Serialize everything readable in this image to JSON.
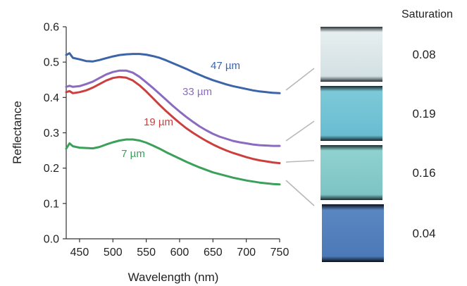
{
  "chart_data": {
    "type": "line",
    "title": "",
    "xlabel": "Wavelength (nm)",
    "ylabel": "Reflectance",
    "xlim": [
      430,
      750
    ],
    "ylim": [
      0.0,
      0.6
    ],
    "xticks": [
      "450",
      "500",
      "550",
      "600",
      "650",
      "700",
      "750"
    ],
    "yticks": [
      "0.0",
      "0.1",
      "0.2",
      "0.3",
      "0.4",
      "0.5",
      "0.6"
    ],
    "grid": false,
    "x": [
      430,
      435,
      440,
      450,
      460,
      470,
      480,
      490,
      500,
      510,
      520,
      530,
      540,
      550,
      560,
      570,
      580,
      590,
      600,
      610,
      620,
      630,
      640,
      650,
      660,
      670,
      680,
      690,
      700,
      710,
      720,
      730,
      740,
      750
    ],
    "series": [
      {
        "name": "47 µm",
        "color": "#3c64a8",
        "values": [
          0.52,
          0.525,
          0.512,
          0.508,
          0.503,
          0.502,
          0.506,
          0.511,
          0.516,
          0.52,
          0.522,
          0.523,
          0.523,
          0.521,
          0.517,
          0.512,
          0.505,
          0.497,
          0.489,
          0.481,
          0.472,
          0.464,
          0.456,
          0.449,
          0.443,
          0.437,
          0.432,
          0.428,
          0.424,
          0.42,
          0.417,
          0.415,
          0.413,
          0.412
        ]
      },
      {
        "name": "33 µm",
        "color": "#8a6bbf",
        "values": [
          0.43,
          0.433,
          0.43,
          0.432,
          0.438,
          0.445,
          0.455,
          0.465,
          0.472,
          0.476,
          0.476,
          0.47,
          0.458,
          0.443,
          0.427,
          0.41,
          0.393,
          0.376,
          0.36,
          0.345,
          0.331,
          0.318,
          0.307,
          0.297,
          0.289,
          0.283,
          0.277,
          0.273,
          0.27,
          0.267,
          0.265,
          0.264,
          0.263,
          0.263
        ]
      },
      {
        "name": "19 µm",
        "color": "#cc3f3f",
        "values": [
          0.415,
          0.418,
          0.412,
          0.415,
          0.42,
          0.428,
          0.438,
          0.448,
          0.455,
          0.458,
          0.456,
          0.448,
          0.434,
          0.417,
          0.398,
          0.379,
          0.361,
          0.344,
          0.328,
          0.313,
          0.3,
          0.288,
          0.277,
          0.267,
          0.258,
          0.25,
          0.243,
          0.237,
          0.231,
          0.226,
          0.222,
          0.219,
          0.216,
          0.214
        ]
      },
      {
        "name": "7 µm",
        "color": "#3aa05a",
        "values": [
          0.255,
          0.27,
          0.262,
          0.258,
          0.257,
          0.256,
          0.26,
          0.267,
          0.273,
          0.278,
          0.281,
          0.281,
          0.278,
          0.272,
          0.264,
          0.255,
          0.245,
          0.236,
          0.227,
          0.218,
          0.21,
          0.202,
          0.195,
          0.188,
          0.183,
          0.178,
          0.173,
          0.169,
          0.165,
          0.162,
          0.159,
          0.157,
          0.155,
          0.154
        ]
      }
    ]
  },
  "saturation_panel": {
    "header": "Saturation",
    "swatches": [
      {
        "value": "0.08",
        "color_top": "#e6eeef",
        "color_mid": "#d3e0e3",
        "color_edge": "#2a3236"
      },
      {
        "value": "0.19",
        "color_top": "#7cc9d8",
        "color_mid": "#69bdd1",
        "color_edge": "#16262c"
      },
      {
        "value": "0.16",
        "color_top": "#8fd1cf",
        "color_mid": "#7ec4c5",
        "color_edge": "#1a2a2c"
      },
      {
        "value": "0.04",
        "color_top": "#5a86c0",
        "color_mid": "#4c7ab8",
        "color_edge": "#0a0f18"
      }
    ],
    "connector_color": "#b8b8b8"
  }
}
